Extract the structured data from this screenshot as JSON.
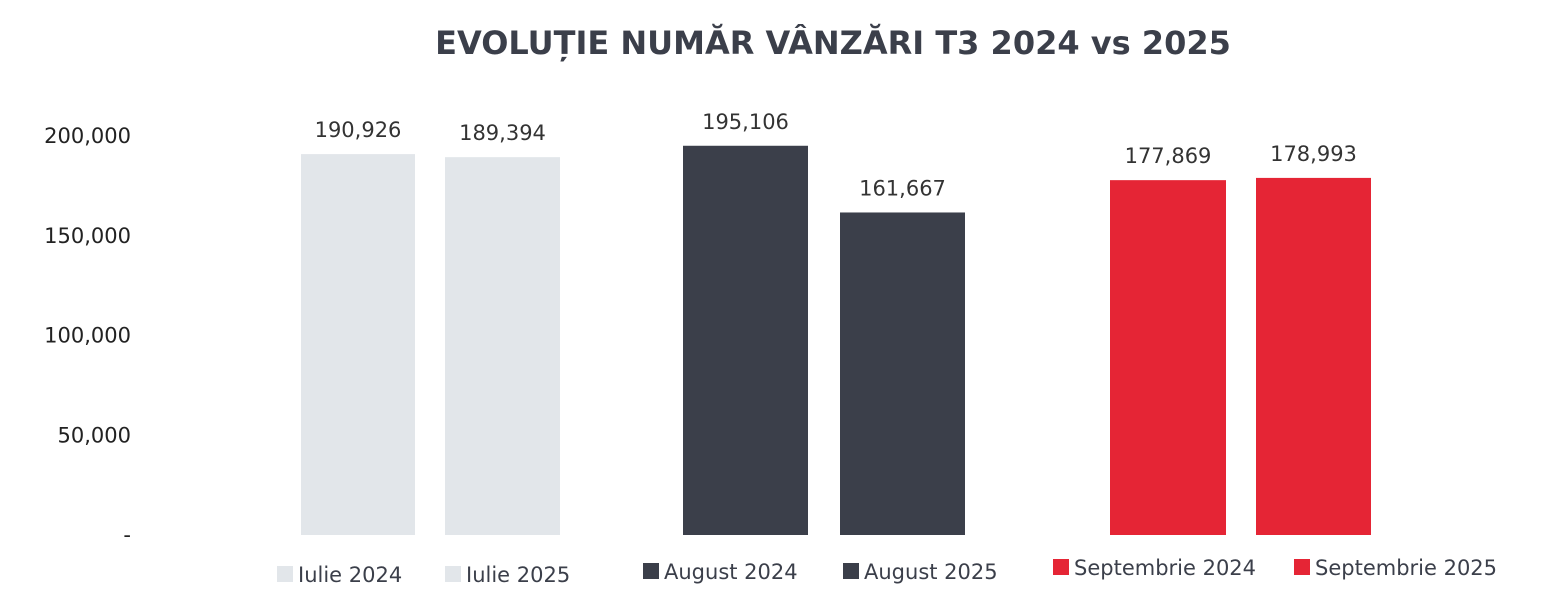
{
  "chart_data": {
    "type": "bar",
    "title": "EVOLUȚIE NUMĂR VÂNZĂRI T3 2024 vs 2025",
    "ylim": [
      0,
      200000
    ],
    "yticks": [
      0,
      50000,
      100000,
      150000,
      200000
    ],
    "ytick_labels": [
      "-",
      "50,000",
      "100,000",
      "150,000",
      "200,000"
    ],
    "grid": false,
    "legend_position": "bottom",
    "series": [
      {
        "name": "Iulie 2024",
        "value": 190926,
        "label": "190,926",
        "color": "#e2e6ea"
      },
      {
        "name": "Iulie 2025",
        "value": 189394,
        "label": "189,394",
        "color": "#e2e6ea"
      },
      {
        "name": "August 2024",
        "value": 195106,
        "label": "195,106",
        "color": "#3b3f4a"
      },
      {
        "name": "August 2025",
        "value": 161667,
        "label": "161,667",
        "color": "#3b3f4a"
      },
      {
        "name": "Septembrie 2024",
        "value": 177869,
        "label": "177,869",
        "color": "#e52535"
      },
      {
        "name": "Septembrie 2025",
        "value": 178993,
        "label": "178,993",
        "color": "#e52535"
      }
    ]
  }
}
